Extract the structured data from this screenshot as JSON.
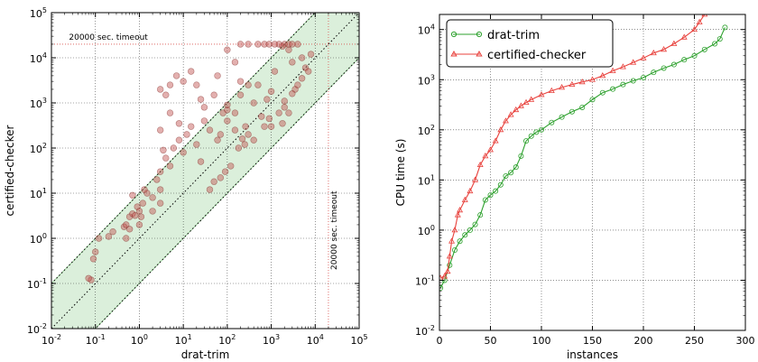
{
  "chart_data": [
    {
      "type": "scatter",
      "xlabel": "drat-trim",
      "ylabel": "certified-checker",
      "xscale": "log",
      "yscale": "log",
      "xlim": [
        0.01,
        100000
      ],
      "ylim": [
        0.01,
        100000
      ],
      "x_ticks": [
        {
          "base": "10",
          "exp": "-2"
        },
        {
          "base": "10",
          "exp": "-1"
        },
        {
          "base": "10",
          "exp": "0"
        },
        {
          "base": "10",
          "exp": "1"
        },
        {
          "base": "10",
          "exp": "2"
        },
        {
          "base": "10",
          "exp": "3"
        },
        {
          "base": "10",
          "exp": "4"
        },
        {
          "base": "10",
          "exp": "5"
        }
      ],
      "y_ticks": [
        {
          "base": "10",
          "exp": "-2"
        },
        {
          "base": "10",
          "exp": "-1"
        },
        {
          "base": "10",
          "exp": "0"
        },
        {
          "base": "10",
          "exp": "1"
        },
        {
          "base": "10",
          "exp": "2"
        },
        {
          "base": "10",
          "exp": "3"
        },
        {
          "base": "10",
          "exp": "4"
        },
        {
          "base": "10",
          "exp": "5"
        }
      ],
      "grid": true,
      "point_color": "#c0504d",
      "band_color": "#5cb85c",
      "timeout_color": "#d9534f",
      "timeout_value": 20000,
      "annotations": {
        "horizontal_timeout": "20000 sec. timeout",
        "vertical_timeout": "20000 sec. timeout"
      },
      "points": [
        [
          0.08,
          0.12
        ],
        [
          0.07,
          0.13
        ],
        [
          0.09,
          0.35
        ],
        [
          0.1,
          0.5
        ],
        [
          0.12,
          1.0
        ],
        [
          0.2,
          1.1
        ],
        [
          0.25,
          1.4
        ],
        [
          0.45,
          1.8
        ],
        [
          0.5,
          2.0
        ],
        [
          0.6,
          3.0
        ],
        [
          0.7,
          3.5
        ],
        [
          0.8,
          3.2
        ],
        [
          0.9,
          5.0
        ],
        [
          1.0,
          4.0
        ],
        [
          0.7,
          9
        ],
        [
          1.2,
          6
        ],
        [
          1.5,
          10
        ],
        [
          1.3,
          12
        ],
        [
          2,
          8
        ],
        [
          2.5,
          20
        ],
        [
          3,
          12
        ],
        [
          3,
          30
        ],
        [
          4,
          60
        ],
        [
          3.5,
          90
        ],
        [
          5,
          40
        ],
        [
          6,
          100
        ],
        [
          8,
          150
        ],
        [
          10,
          80
        ],
        [
          12,
          200
        ],
        [
          15,
          300
        ],
        [
          20,
          120
        ],
        [
          25,
          50
        ],
        [
          30,
          400
        ],
        [
          40,
          250
        ],
        [
          50,
          1500
        ],
        [
          60,
          150
        ],
        [
          80,
          600
        ],
        [
          100,
          900
        ],
        [
          150,
          250
        ],
        [
          200,
          3000
        ],
        [
          300,
          200
        ],
        [
          400,
          1000
        ],
        [
          500,
          2500
        ],
        [
          600,
          500
        ],
        [
          800,
          1200
        ],
        [
          1000,
          1800
        ],
        [
          1200,
          5000
        ],
        [
          1500,
          20000
        ],
        [
          2000,
          800
        ],
        [
          2500,
          15000
        ],
        [
          3000,
          8000
        ],
        [
          3500,
          2000
        ],
        [
          4000,
          20000
        ],
        [
          5000,
          10000
        ],
        [
          6000,
          6000
        ],
        [
          8000,
          12000
        ],
        [
          7000,
          5000
        ],
        [
          2500,
          600
        ],
        [
          1800,
          350
        ],
        [
          900,
          450
        ],
        [
          700,
          300
        ],
        [
          400,
          150
        ],
        [
          250,
          120
        ],
        [
          120,
          40
        ],
        [
          90,
          30
        ],
        [
          70,
          22
        ],
        [
          50,
          18
        ],
        [
          40,
          12
        ],
        [
          200,
          20000
        ],
        [
          300,
          20000
        ],
        [
          500,
          20000
        ],
        [
          700,
          20000
        ],
        [
          900,
          20000
        ],
        [
          1200,
          20000
        ],
        [
          2000,
          20000
        ],
        [
          2500,
          20000
        ],
        [
          3000,
          20000
        ],
        [
          1800,
          18000
        ],
        [
          3.0,
          2000
        ],
        [
          5,
          2500
        ],
        [
          10,
          3000
        ],
        [
          15,
          5000
        ],
        [
          20,
          2500
        ],
        [
          25,
          1200
        ],
        [
          30,
          800
        ],
        [
          70,
          200
        ],
        [
          100,
          700
        ],
        [
          200,
          1500
        ],
        [
          300,
          2500
        ],
        [
          5,
          600
        ],
        [
          8,
          350
        ],
        [
          3,
          250
        ],
        [
          7,
          4000
        ],
        [
          4,
          1500
        ],
        [
          100,
          15000
        ],
        [
          150,
          8000
        ],
        [
          60,
          4000
        ],
        [
          100,
          400
        ],
        [
          150,
          600
        ],
        [
          1000,
          300
        ],
        [
          1500,
          600
        ],
        [
          2000,
          1100
        ],
        [
          3000,
          1600
        ],
        [
          4000,
          2500
        ],
        [
          5000,
          3500
        ],
        [
          180,
          100
        ],
        [
          220,
          160
        ],
        [
          260,
          300
        ],
        [
          1,
          2
        ],
        [
          0.6,
          1.6
        ],
        [
          2,
          4
        ],
        [
          3,
          6
        ],
        [
          1.1,
          3
        ],
        [
          0.5,
          1
        ]
      ]
    },
    {
      "type": "line",
      "xlabel": "instances",
      "ylabel": "CPU time (s)",
      "xscale": "linear",
      "yscale": "log",
      "xlim": [
        0,
        300
      ],
      "ylim": [
        0.01,
        20000
      ],
      "x_ticks": [
        "0",
        "50",
        "100",
        "150",
        "200",
        "250",
        "300"
      ],
      "y_ticks": [
        {
          "base": "10",
          "exp": "-2"
        },
        {
          "base": "10",
          "exp": "-1"
        },
        {
          "base": "10",
          "exp": "0"
        },
        {
          "base": "10",
          "exp": "1"
        },
        {
          "base": "10",
          "exp": "2"
        },
        {
          "base": "10",
          "exp": "3"
        },
        {
          "base": "10",
          "exp": "4"
        }
      ],
      "grid": true,
      "legend_position": "top-left",
      "series": [
        {
          "name": "drat-trim",
          "color": "#2ca02c",
          "marker": "circle",
          "x": [
            1,
            5,
            10,
            15,
            20,
            25,
            30,
            35,
            40,
            45,
            50,
            55,
            60,
            65,
            70,
            75,
            80,
            85,
            90,
            95,
            100,
            110,
            120,
            130,
            140,
            150,
            160,
            170,
            180,
            190,
            200,
            210,
            220,
            230,
            240,
            250,
            260,
            270,
            275,
            280
          ],
          "y": [
            0.07,
            0.1,
            0.2,
            0.4,
            0.6,
            0.8,
            1.0,
            1.3,
            2.0,
            4.0,
            5.0,
            6.0,
            8.0,
            12,
            14,
            18,
            30,
            60,
            75,
            90,
            100,
            140,
            180,
            230,
            280,
            400,
            550,
            650,
            800,
            950,
            1100,
            1400,
            1700,
            2000,
            2500,
            3000,
            4000,
            5200,
            6500,
            11000
          ]
        },
        {
          "name": "certified-checker",
          "color": "#e8413c",
          "marker": "triangle",
          "x": [
            1,
            5,
            8,
            10,
            12,
            15,
            18,
            20,
            25,
            30,
            35,
            40,
            45,
            50,
            55,
            60,
            65,
            70,
            75,
            80,
            85,
            90,
            100,
            110,
            120,
            130,
            140,
            150,
            160,
            170,
            180,
            190,
            200,
            210,
            220,
            230,
            240,
            250,
            255,
            260
          ],
          "y": [
            0.11,
            0.12,
            0.15,
            0.3,
            0.6,
            1.0,
            2.0,
            2.5,
            4.0,
            6.0,
            10,
            20,
            30,
            40,
            60,
            100,
            150,
            200,
            250,
            300,
            350,
            400,
            500,
            600,
            700,
            800,
            900,
            1000,
            1200,
            1500,
            1800,
            2200,
            2700,
            3400,
            4000,
            5200,
            7000,
            10000,
            14000,
            20000
          ]
        }
      ]
    }
  ]
}
